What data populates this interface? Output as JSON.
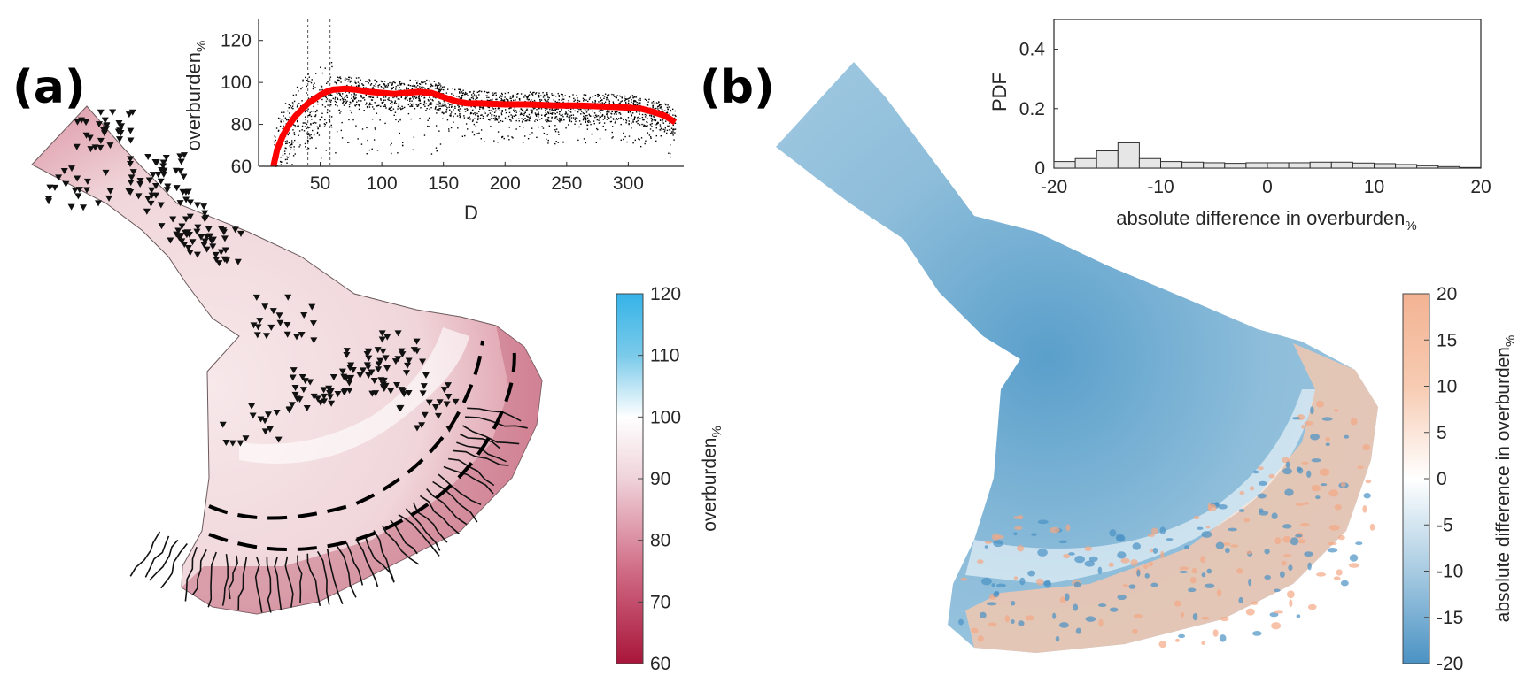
{
  "figure": {
    "panel_a_label": "(a)",
    "panel_b_label": "(b)"
  },
  "colors": {
    "scatter": "#000000",
    "median_line": "#ff0000",
    "hist_bar_fill": "#e6e6e6",
    "hist_bar_edge": "#303030",
    "cbar_a": [
      "#a8153a",
      "#d06b85",
      "#efd3da",
      "#ffffff",
      "#7ccbea",
      "#35b3e8"
    ],
    "cbar_b": [
      "#4a92c4",
      "#a8cbe2",
      "#ffffff",
      "#f7cbb2",
      "#f3b393"
    ],
    "map_a_fill": "#f0d9dc",
    "map_b_fill": "#8dbdda"
  },
  "chart_data": [
    {
      "id": "a-scatter-inset",
      "type": "scatter",
      "xlabel": "D",
      "ylabel_main": "overburden",
      "ylabel_sub": "%",
      "xlim": [
        0,
        345
      ],
      "ylim": [
        60,
        130
      ],
      "xticks": [
        50,
        100,
        150,
        200,
        250,
        300
      ],
      "yticks": [
        60,
        80,
        100,
        120
      ],
      "vlines": [
        40,
        58
      ],
      "series": [
        {
          "kind": "median-line",
          "x": [
            12,
            15,
            20,
            25,
            30,
            35,
            40,
            45,
            50,
            55,
            60,
            70,
            80,
            90,
            100,
            110,
            120,
            130,
            140,
            150,
            160,
            170,
            180,
            200,
            220,
            240,
            260,
            280,
            300,
            310,
            320,
            330,
            338
          ],
          "y": [
            60,
            68,
            75,
            80,
            84,
            87,
            90,
            92,
            94,
            95.5,
            96.5,
            97,
            96.5,
            95.5,
            95,
            94.5,
            95,
            95.5,
            95,
            93,
            91,
            90,
            90,
            89.5,
            89.5,
            89,
            89,
            88.5,
            88,
            87.5,
            86,
            84,
            81
          ]
        }
      ]
    },
    {
      "id": "b-histogram-inset",
      "type": "bar",
      "xlabel_main": "absolute difference in overburden",
      "xlabel_sub": "%",
      "ylabel": "PDF",
      "xlim": [
        -20,
        20
      ],
      "ylim": [
        0,
        0.5
      ],
      "xticks": [
        -20,
        -10,
        0,
        10,
        20
      ],
      "yticks": [
        0,
        0.2,
        0.4
      ],
      "bin_width": 2,
      "bin_left_edges": [
        -20,
        -18,
        -16,
        -14,
        -12,
        -10,
        -8,
        -6,
        -4,
        -2,
        0,
        2,
        4,
        6,
        8,
        10,
        12,
        14,
        16,
        18
      ],
      "values": [
        0.022,
        0.032,
        0.058,
        0.085,
        0.032,
        0.022,
        0.02,
        0.018,
        0.016,
        0.018,
        0.018,
        0.018,
        0.02,
        0.02,
        0.017,
        0.015,
        0.012,
        0.008,
        0.005,
        0.002
      ]
    },
    {
      "id": "a-colorbar",
      "type": "heatmap",
      "label_main": "overburden",
      "label_sub": "%",
      "range": [
        60,
        120
      ],
      "ticks": [
        60,
        70,
        80,
        90,
        100,
        110,
        120
      ]
    },
    {
      "id": "b-colorbar",
      "type": "heatmap",
      "label_main": "absolute difference in overburden",
      "label_sub": "%",
      "range": [
        -20,
        20
      ],
      "ticks": [
        -20,
        -15,
        -10,
        -5,
        0,
        5,
        10,
        15,
        20
      ]
    }
  ]
}
